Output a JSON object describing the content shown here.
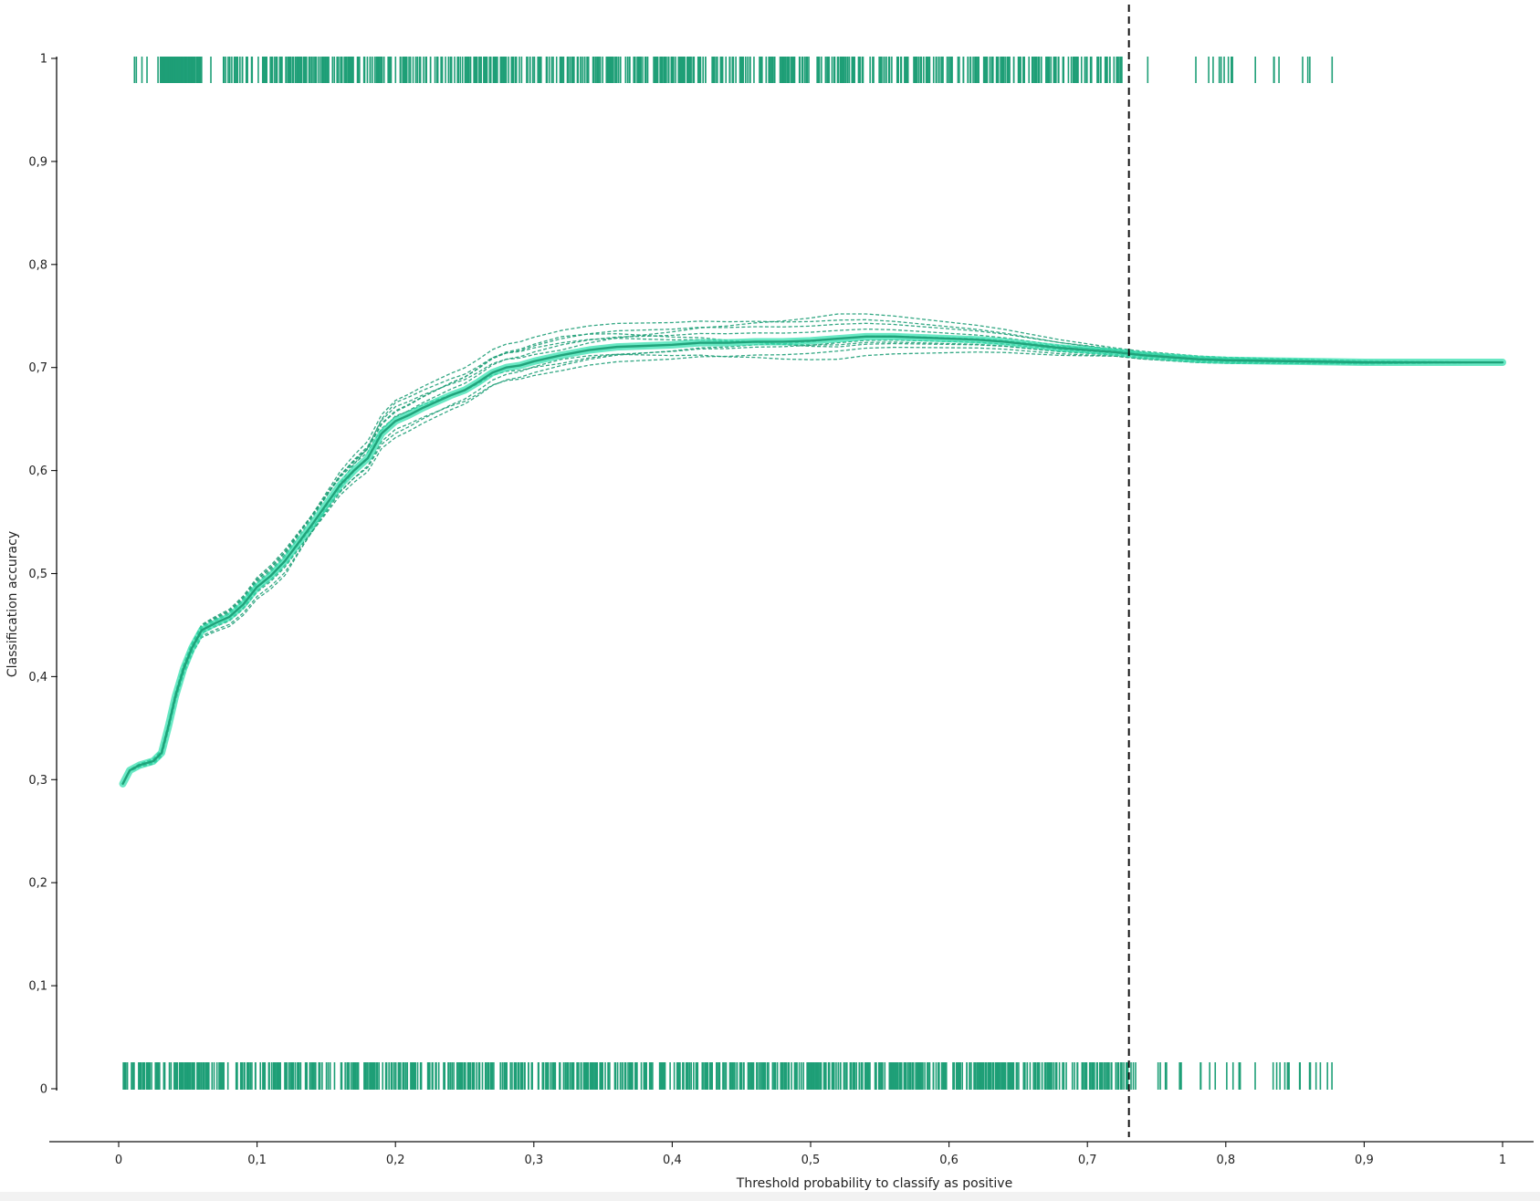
{
  "chart_data": {
    "type": "line",
    "title": "",
    "xlabel": "Threshold probability to classify as positive",
    "ylabel": "Classification accuracy",
    "xlim": [
      0,
      1
    ],
    "ylim": [
      0,
      1
    ],
    "grid": false,
    "legend": "none",
    "x_ticks": [
      "0",
      "0,1",
      "0,2",
      "0,3",
      "0,4",
      "0,5",
      "0,6",
      "0,7",
      "0,8",
      "0,9",
      "1"
    ],
    "y_ticks": [
      "0",
      "0,1",
      "0,2",
      "0,3",
      "0,4",
      "0,5",
      "0,6",
      "0,7",
      "0,8",
      "0,9",
      "1"
    ],
    "threshold_marker": {
      "x": 0.73,
      "style": "dashed",
      "color": "#111111"
    },
    "mean_series": {
      "color": "#37e0b0",
      "core_color": "#1e9f77",
      "points": [
        [
          0.003,
          0.296
        ],
        [
          0.008,
          0.309
        ],
        [
          0.015,
          0.314
        ],
        [
          0.025,
          0.318
        ],
        [
          0.031,
          0.326
        ],
        [
          0.036,
          0.352
        ],
        [
          0.041,
          0.381
        ],
        [
          0.047,
          0.408
        ],
        [
          0.053,
          0.428
        ],
        [
          0.06,
          0.445
        ],
        [
          0.07,
          0.452
        ],
        [
          0.08,
          0.458
        ],
        [
          0.09,
          0.47
        ],
        [
          0.1,
          0.487
        ],
        [
          0.11,
          0.498
        ],
        [
          0.12,
          0.512
        ],
        [
          0.13,
          0.53
        ],
        [
          0.14,
          0.548
        ],
        [
          0.15,
          0.567
        ],
        [
          0.16,
          0.586
        ],
        [
          0.17,
          0.6
        ],
        [
          0.18,
          0.612
        ],
        [
          0.19,
          0.636
        ],
        [
          0.2,
          0.648
        ],
        [
          0.21,
          0.654
        ],
        [
          0.22,
          0.661
        ],
        [
          0.23,
          0.667
        ],
        [
          0.24,
          0.673
        ],
        [
          0.25,
          0.678
        ],
        [
          0.26,
          0.686
        ],
        [
          0.27,
          0.695
        ],
        [
          0.28,
          0.7
        ],
        [
          0.29,
          0.702
        ],
        [
          0.3,
          0.706
        ],
        [
          0.32,
          0.712
        ],
        [
          0.34,
          0.717
        ],
        [
          0.36,
          0.72
        ],
        [
          0.38,
          0.721
        ],
        [
          0.4,
          0.722
        ],
        [
          0.42,
          0.724
        ],
        [
          0.44,
          0.724
        ],
        [
          0.46,
          0.725
        ],
        [
          0.48,
          0.725
        ],
        [
          0.5,
          0.726
        ],
        [
          0.52,
          0.728
        ],
        [
          0.54,
          0.73
        ],
        [
          0.56,
          0.73
        ],
        [
          0.58,
          0.729
        ],
        [
          0.6,
          0.728
        ],
        [
          0.62,
          0.727
        ],
        [
          0.64,
          0.725
        ],
        [
          0.66,
          0.722
        ],
        [
          0.68,
          0.719
        ],
        [
          0.7,
          0.717
        ],
        [
          0.72,
          0.715
        ],
        [
          0.74,
          0.712
        ],
        [
          0.76,
          0.71
        ],
        [
          0.78,
          0.708
        ],
        [
          0.8,
          0.707
        ],
        [
          0.85,
          0.706
        ],
        [
          0.9,
          0.705
        ],
        [
          0.95,
          0.705
        ],
        [
          1.0,
          0.705
        ]
      ]
    },
    "replicate_offsets": [
      [
        -0.014,
        0.018,
        0.012,
        -0.006,
        -0.003
      ],
      [
        0.009,
        0.01,
        0.016,
        0.014,
        0.003
      ],
      [
        -0.006,
        -0.008,
        -0.015,
        -0.012,
        -0.004
      ],
      [
        0.006,
        0.02,
        0.024,
        0.018,
        0.002
      ],
      [
        0.0,
        -0.012,
        -0.004,
        -0.02,
        -0.004
      ],
      [
        0.011,
        0.004,
        0.01,
        0.008,
        0.001
      ],
      [
        -0.011,
        0.005,
        -0.008,
        -0.004,
        -0.001
      ],
      [
        0.004,
        0.014,
        0.005,
        0.024,
        0.004
      ],
      [
        -0.004,
        -0.016,
        -0.01,
        0.0,
        0.002
      ],
      [
        0.008,
        0.009,
        0.018,
        -0.008,
        -0.002
      ]
    ],
    "top_rug": {
      "y": 1,
      "range": [
        0.005,
        0.88
      ],
      "dense_ranges": [
        [
          0.03,
          0.06
        ],
        [
          0.08,
          0.72
        ]
      ],
      "color": "#1e9f77"
    },
    "bottom_rug": {
      "y": 0,
      "range": [
        0.003,
        0.88
      ],
      "dense_ranges": [
        [
          0.003,
          0.73
        ]
      ],
      "color": "#1e9f77"
    }
  }
}
